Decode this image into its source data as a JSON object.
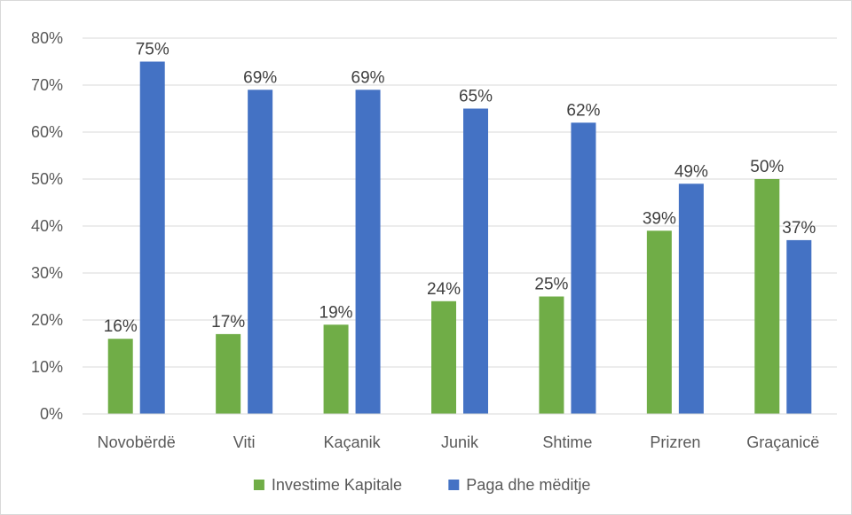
{
  "chart_data": {
    "type": "bar",
    "categories": [
      "Novobërdë",
      "Viti",
      "Kaçanik",
      "Junik",
      "Shtime",
      "Prizren",
      "Graçanicë"
    ],
    "series": [
      {
        "name": "Investime Kapitale",
        "values": [
          16,
          17,
          19,
          24,
          25,
          39,
          50
        ],
        "labels": [
          "16%",
          "17%",
          "19%",
          "24%",
          "25%",
          "39%",
          "50%"
        ],
        "color": "#70ad47"
      },
      {
        "name": "Paga dhe mëditje",
        "values": [
          75,
          69,
          69,
          65,
          62,
          49,
          37
        ],
        "labels": [
          "75%",
          "69%",
          "69%",
          "65%",
          "62%",
          "49%",
          "37%"
        ],
        "color": "#4472c4"
      }
    ],
    "ylim": [
      0,
      80
    ],
    "yticks": [
      "0%",
      "10%",
      "20%",
      "30%",
      "40%",
      "50%",
      "60%",
      "70%",
      "80%"
    ],
    "grid": true,
    "legend_position": "bottom",
    "gridline_color": "#d9d9d9",
    "axis_text_color": "#595959"
  }
}
